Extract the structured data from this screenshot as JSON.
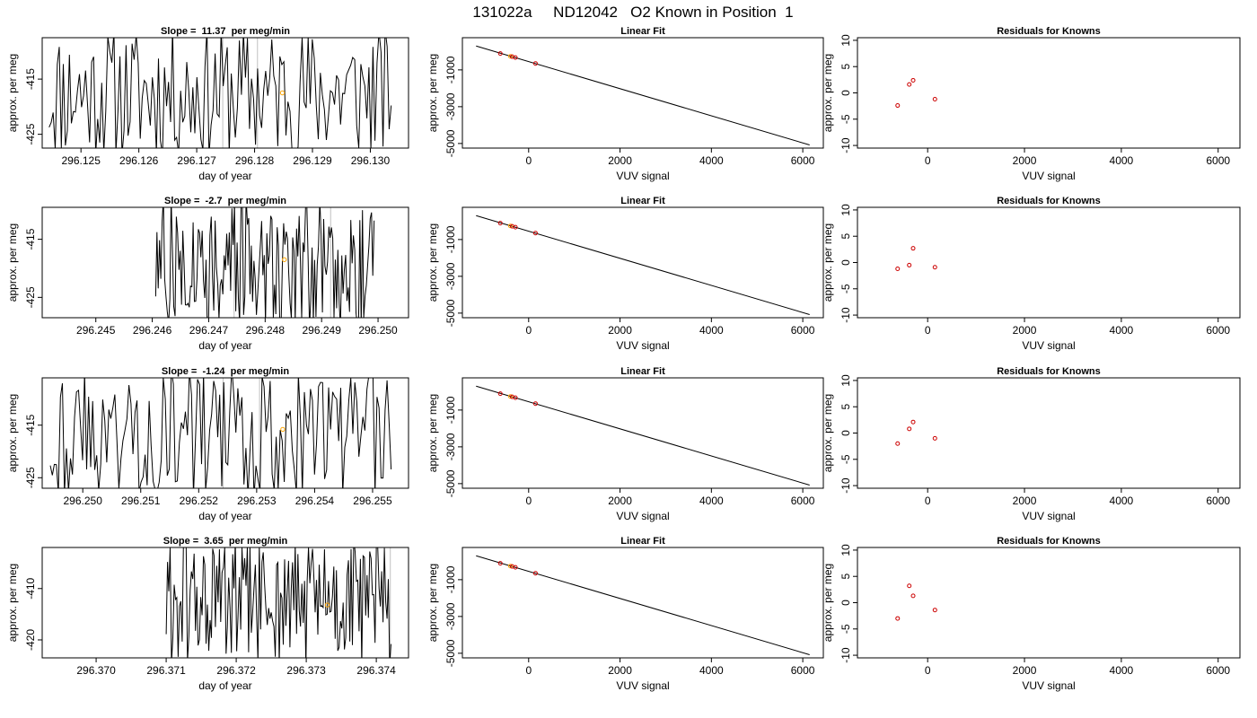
{
  "title": "131022a     ND12042   O2 Known in Position  1",
  "colors": {
    "trace": "#000000",
    "trace_light": "#c0c0c0",
    "highlight": "#ffa500",
    "knowns": "#cc0000",
    "axis": "#000000"
  },
  "chart_data": [
    {
      "type": "line",
      "panel": "time-series",
      "row": 1,
      "title": "Slope =  11.37  per meg/min",
      "xlabel": "day of year",
      "ylabel": "approx. per meg",
      "xlim": [
        296.12433,
        296.13066
      ],
      "ylim": [
        -427.5,
        -407.5
      ],
      "xticks": [
        296.125,
        296.126,
        296.127,
        296.128,
        296.129,
        296.13
      ],
      "xtick_labels": [
        "296.125",
        "296.126",
        "296.127",
        "296.128",
        "296.129",
        "296.130"
      ],
      "yticks": [
        -415,
        -425
      ],
      "ytick_labels": [
        "-415",
        "-425"
      ],
      "trace_seed": 11,
      "trace_start": 296.12445,
      "trace_end": 296.13036,
      "light_x": [
        296.12745,
        296.12805
      ],
      "highlight_point": {
        "x": 296.12848,
        "y": -417.5
      }
    },
    {
      "type": "line",
      "panel": "linear-fit",
      "row": 1,
      "title": "Linear Fit",
      "xlabel": "VUV signal",
      "ylabel": "approx. per meg",
      "xlim": [
        -1450,
        6450
      ],
      "ylim": [
        -5250,
        750
      ],
      "xticks": [
        0,
        2000,
        4000,
        6000
      ],
      "xtick_labels": [
        "0",
        "2000",
        "4000",
        "6000"
      ],
      "yticks": [
        -1000,
        -3000,
        -5000
      ],
      "ytick_labels": [
        "-1000",
        "-3000",
        "-5000"
      ],
      "fit_line": {
        "x": [
          -1150,
          6150
        ],
        "y": [
          300,
          -5080
        ]
      },
      "points": [
        {
          "x": -620,
          "y": -110,
          "color": "knowns"
        },
        {
          "x": -400,
          "y": -260,
          "color": "highlight"
        },
        {
          "x": -360,
          "y": -280,
          "color": "knowns"
        },
        {
          "x": -290,
          "y": -330,
          "color": "knowns"
        },
        {
          "x": 150,
          "y": -650,
          "color": "knowns"
        }
      ]
    },
    {
      "type": "scatter",
      "panel": "residuals",
      "row": 1,
      "title": "Residuals for Knowns",
      "xlabel": "VUV signal",
      "ylabel": "approx. per meg",
      "xlim": [
        -1450,
        6450
      ],
      "ylim": [
        -10.5,
        10.5
      ],
      "xticks": [
        0,
        2000,
        4000,
        6000
      ],
      "xtick_labels": [
        "0",
        "2000",
        "4000",
        "6000"
      ],
      "yticks": [
        10,
        5,
        0,
        -5,
        -10
      ],
      "ytick_labels": [
        "10",
        "5",
        "0",
        "-5",
        "-10"
      ],
      "points": [
        {
          "x": -620,
          "y": -2.4
        },
        {
          "x": -380,
          "y": 1.6
        },
        {
          "x": -300,
          "y": 2.4
        },
        {
          "x": 150,
          "y": -1.2
        }
      ]
    },
    {
      "type": "line",
      "panel": "time-series",
      "row": 2,
      "title": "Slope =  -2.7  per meg/min",
      "xlabel": "day of year",
      "ylabel": "approx. per meg",
      "xlim": [
        296.24405,
        296.25054
      ],
      "ylim": [
        -428.5,
        -409.5
      ],
      "xticks": [
        296.245,
        296.246,
        296.247,
        296.248,
        296.249,
        296.25
      ],
      "xtick_labels": [
        "296.245",
        "296.246",
        "296.247",
        "296.248",
        "296.249",
        "296.250"
      ],
      "yticks": [
        -415,
        -425
      ],
      "ytick_labels": [
        "-415",
        "-425"
      ],
      "trace_seed": 27,
      "trace_start": 296.24606,
      "trace_end": 296.24993,
      "light_x": [
        296.24745,
        296.24916
      ],
      "highlight_point": {
        "x": 296.24834,
        "y": -418.5
      }
    },
    {
      "type": "line",
      "panel": "linear-fit",
      "row": 2,
      "title": "Linear Fit",
      "xlabel": "VUV signal",
      "ylabel": "approx. per meg",
      "xlim": [
        -1450,
        6450
      ],
      "ylim": [
        -5250,
        750
      ],
      "xticks": [
        0,
        2000,
        4000,
        6000
      ],
      "xtick_labels": [
        "0",
        "2000",
        "4000",
        "6000"
      ],
      "yticks": [
        -1000,
        -3000,
        -5000
      ],
      "ytick_labels": [
        "-1000",
        "-3000",
        "-5000"
      ],
      "fit_line": {
        "x": [
          -1150,
          6150
        ],
        "y": [
          300,
          -5080
        ]
      },
      "points": [
        {
          "x": -620,
          "y": -110,
          "color": "knowns"
        },
        {
          "x": -400,
          "y": -260,
          "color": "highlight"
        },
        {
          "x": -360,
          "y": -280,
          "color": "knowns"
        },
        {
          "x": -290,
          "y": -330,
          "color": "knowns"
        },
        {
          "x": 150,
          "y": -650,
          "color": "knowns"
        }
      ]
    },
    {
      "type": "scatter",
      "panel": "residuals",
      "row": 2,
      "title": "Residuals for Knowns",
      "xlabel": "VUV signal",
      "ylabel": "approx. per meg",
      "xlim": [
        -1450,
        6450
      ],
      "ylim": [
        -10.5,
        10.5
      ],
      "xticks": [
        0,
        2000,
        4000,
        6000
      ],
      "xtick_labels": [
        "0",
        "2000",
        "4000",
        "6000"
      ],
      "yticks": [
        10,
        5,
        0,
        -5,
        -10
      ],
      "ytick_labels": [
        "10",
        "5",
        "0",
        "-5",
        "-10"
      ],
      "points": [
        {
          "x": -620,
          "y": -1.2
        },
        {
          "x": -380,
          "y": -0.5
        },
        {
          "x": -300,
          "y": 2.7
        },
        {
          "x": 150,
          "y": -0.9
        }
      ]
    },
    {
      "type": "line",
      "panel": "time-series",
      "row": 3,
      "title": "Slope =  -1.24  per meg/min",
      "xlabel": "day of year",
      "ylabel": "approx. per meg",
      "xlim": [
        296.2493,
        296.25562
      ],
      "ylim": [
        -427.0,
        -406.0
      ],
      "xticks": [
        296.25,
        296.251,
        296.252,
        296.253,
        296.254,
        296.255
      ],
      "xtick_labels": [
        "296.250",
        "296.251",
        "296.252",
        "296.253",
        "296.254",
        "296.255"
      ],
      "yticks": [
        -415,
        -425
      ],
      "ytick_labels": [
        "-415",
        "-425"
      ],
      "trace_seed": 43,
      "trace_start": 296.24944,
      "trace_end": 296.25532,
      "light_x": [
        296.25242,
        296.25305
      ],
      "highlight_point": {
        "x": 296.25345,
        "y": -415.8
      }
    },
    {
      "type": "line",
      "panel": "linear-fit",
      "row": 3,
      "title": "Linear Fit",
      "xlabel": "VUV signal",
      "ylabel": "approx. per meg",
      "xlim": [
        -1450,
        6450
      ],
      "ylim": [
        -5250,
        750
      ],
      "xticks": [
        0,
        2000,
        4000,
        6000
      ],
      "xtick_labels": [
        "0",
        "2000",
        "4000",
        "6000"
      ],
      "yticks": [
        -1000,
        -3000,
        -5000
      ],
      "ytick_labels": [
        "-1000",
        "-3000",
        "-5000"
      ],
      "fit_line": {
        "x": [
          -1150,
          6150
        ],
        "y": [
          300,
          -5080
        ]
      },
      "points": [
        {
          "x": -620,
          "y": -110,
          "color": "knowns"
        },
        {
          "x": -400,
          "y": -260,
          "color": "highlight"
        },
        {
          "x": -360,
          "y": -280,
          "color": "knowns"
        },
        {
          "x": -290,
          "y": -330,
          "color": "knowns"
        },
        {
          "x": 150,
          "y": -650,
          "color": "knowns"
        }
      ]
    },
    {
      "type": "scatter",
      "panel": "residuals",
      "row": 3,
      "title": "Residuals for Knowns",
      "xlabel": "VUV signal",
      "ylabel": "approx. per meg",
      "xlim": [
        -1450,
        6450
      ],
      "ylim": [
        -10.5,
        10.5
      ],
      "xticks": [
        0,
        2000,
        4000,
        6000
      ],
      "xtick_labels": [
        "0",
        "2000",
        "4000",
        "6000"
      ],
      "yticks": [
        10,
        5,
        0,
        -5,
        -10
      ],
      "ytick_labels": [
        "10",
        "5",
        "0",
        "-5",
        "-10"
      ],
      "points": [
        {
          "x": -620,
          "y": -2.0
        },
        {
          "x": -380,
          "y": 0.8
        },
        {
          "x": -300,
          "y": 2.1
        },
        {
          "x": 150,
          "y": -1.0
        }
      ]
    },
    {
      "type": "line",
      "panel": "time-series",
      "row": 4,
      "title": "Slope =  3.65  per meg/min",
      "xlabel": "day of year",
      "ylabel": "approx. per meg",
      "xlim": [
        296.36923,
        296.37446
      ],
      "ylim": [
        -423.5,
        -402.0
      ],
      "xticks": [
        296.37,
        296.371,
        296.372,
        296.373,
        296.374
      ],
      "xtick_labels": [
        "296.370",
        "296.371",
        "296.372",
        "296.373",
        "296.374"
      ],
      "yticks": [
        -410,
        -420
      ],
      "ytick_labels": [
        "-410",
        "-420"
      ],
      "trace_seed": 61,
      "trace_start": 296.371,
      "trace_end": 296.37421,
      "light_x": [
        296.3742
      ],
      "highlight_point": {
        "x": 296.3733,
        "y": -413.2
      }
    },
    {
      "type": "line",
      "panel": "linear-fit",
      "row": 4,
      "title": "Linear Fit",
      "xlabel": "VUV signal",
      "ylabel": "approx. per meg",
      "xlim": [
        -1450,
        6450
      ],
      "ylim": [
        -5250,
        750
      ],
      "xticks": [
        0,
        2000,
        4000,
        6000
      ],
      "xtick_labels": [
        "0",
        "2000",
        "4000",
        "6000"
      ],
      "yticks": [
        -1000,
        -3000,
        -5000
      ],
      "ytick_labels": [
        "-1000",
        "-3000",
        "-5000"
      ],
      "fit_line": {
        "x": [
          -1150,
          6150
        ],
        "y": [
          300,
          -5080
        ]
      },
      "points": [
        {
          "x": -620,
          "y": -110,
          "color": "knowns"
        },
        {
          "x": -400,
          "y": -260,
          "color": "highlight"
        },
        {
          "x": -360,
          "y": -280,
          "color": "knowns"
        },
        {
          "x": -290,
          "y": -330,
          "color": "knowns"
        },
        {
          "x": 150,
          "y": -650,
          "color": "knowns"
        }
      ]
    },
    {
      "type": "scatter",
      "panel": "residuals",
      "row": 4,
      "title": "Residuals for Knowns",
      "xlabel": "VUV signal",
      "ylabel": "approx. per meg",
      "xlim": [
        -1450,
        6450
      ],
      "ylim": [
        -10.5,
        10.5
      ],
      "xticks": [
        0,
        2000,
        4000,
        6000
      ],
      "xtick_labels": [
        "0",
        "2000",
        "4000",
        "6000"
      ],
      "yticks": [
        10,
        5,
        0,
        -5,
        -10
      ],
      "ytick_labels": [
        "10",
        "5",
        "0",
        "-5",
        "-10"
      ],
      "points": [
        {
          "x": -620,
          "y": -3.0
        },
        {
          "x": -380,
          "y": 3.2
        },
        {
          "x": -300,
          "y": 1.3
        },
        {
          "x": 150,
          "y": -1.4
        }
      ]
    }
  ]
}
